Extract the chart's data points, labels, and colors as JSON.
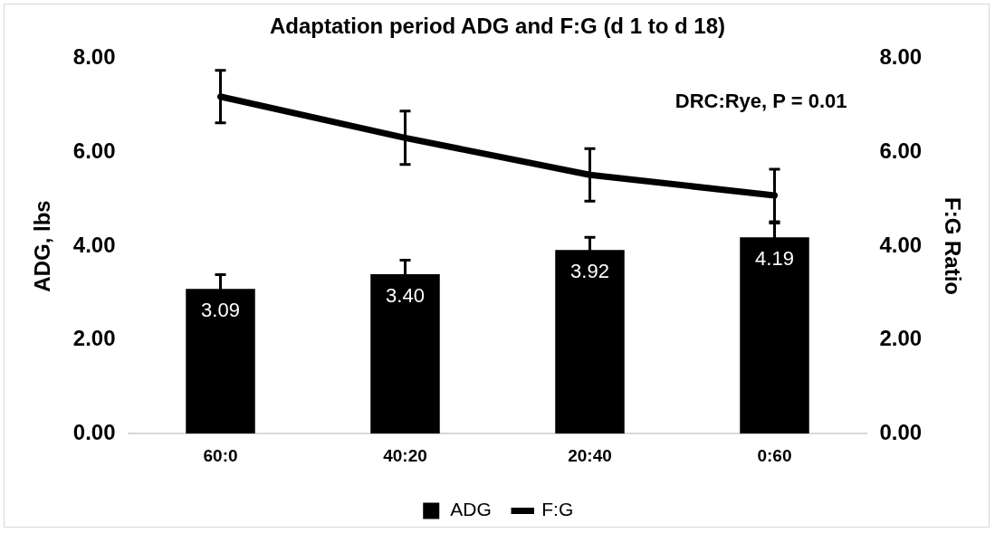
{
  "chart_data": {
    "type": "bar",
    "title": "Adaptation period ADG and F:G (d 1 to d 18)",
    "categories": [
      "60:0",
      "40:20",
      "20:40",
      "0:60"
    ],
    "ylabel": "ADG, lbs",
    "y2label": "F:G Ratio",
    "series": [
      {
        "name": "ADG",
        "color": "#000000",
        "values": [
          3.09,
          3.4,
          3.92,
          4.19
        ],
        "errors": [
          0.3,
          0.3,
          0.27,
          0.3
        ],
        "value_labels": [
          "3.09",
          "3.40",
          "3.92",
          "4.19"
        ]
      },
      {
        "name": "F:G",
        "type": "line",
        "axis": "y2",
        "color": "#000000",
        "values": [
          7.19,
          6.31,
          5.52,
          5.08
        ],
        "errors": [
          0.56,
          0.57,
          0.56,
          0.56
        ]
      }
    ],
    "ylim": [
      0,
      8
    ],
    "yticks": [
      {
        "value": 0,
        "label": "0.00"
      },
      {
        "value": 2,
        "label": "2.00"
      },
      {
        "value": 4,
        "label": "4.00"
      },
      {
        "value": 6,
        "label": "6.00"
      },
      {
        "value": 8,
        "label": "8.00"
      }
    ],
    "y2lim": [
      0,
      8
    ],
    "y2ticks": [
      {
        "value": 0,
        "label": "0.00"
      },
      {
        "value": 2,
        "label": "2.00"
      },
      {
        "value": 4,
        "label": "4.00"
      },
      {
        "value": 6,
        "label": "6.00"
      },
      {
        "value": 8,
        "label": "8.00"
      }
    ],
    "annotations": [
      "DRC:Rye, P = 0.01"
    ],
    "grid": false,
    "legend": "bottom",
    "marker": "none",
    "line_style": "solid"
  }
}
